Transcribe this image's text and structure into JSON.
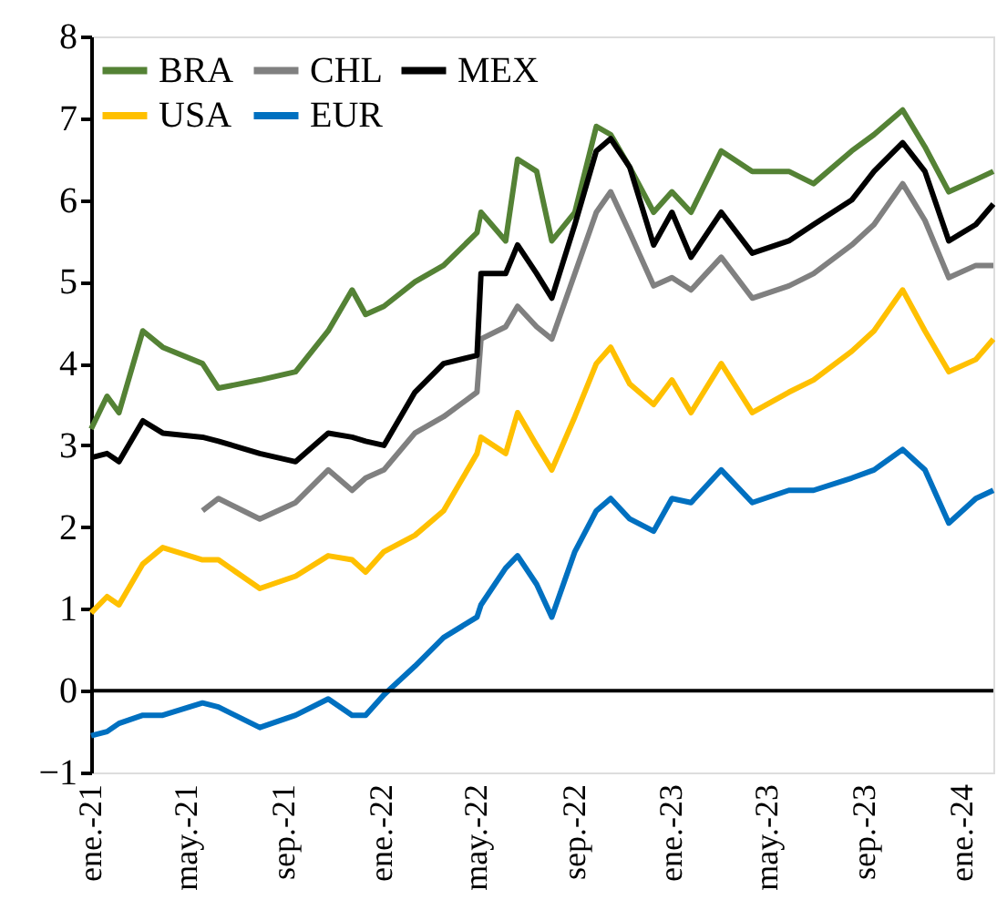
{
  "chart_data": {
    "type": "line",
    "x": [
      "2021-01-01",
      "2021-01-21",
      "2021-02-05",
      "2021-03-07",
      "2021-04-01",
      "2021-05-21",
      "2021-06-10",
      "2021-08-01",
      "2021-09-15",
      "2021-10-26",
      "2021-11-25",
      "2021-12-12",
      "2022-01-04",
      "2022-02-12",
      "2022-03-20",
      "2022-05-01",
      "2022-05-06",
      "2022-06-06",
      "2022-06-21",
      "2022-07-15",
      "2022-08-03",
      "2022-09-01",
      "2022-09-28",
      "2022-10-16",
      "2022-11-09",
      "2022-12-09",
      "2023-01-01",
      "2023-01-25",
      "2023-03-04",
      "2023-04-12",
      "2023-05-28",
      "2023-06-28",
      "2023-08-15",
      "2023-09-12",
      "2023-10-18",
      "2023-11-15",
      "2023-12-15",
      "2024-01-18",
      "2024-02-09"
    ],
    "series": [
      {
        "name": "BRA",
        "color": "#548235",
        "values": [
          3.2,
          3.6,
          3.4,
          4.4,
          4.2,
          4.0,
          3.7,
          3.8,
          3.9,
          4.4,
          4.9,
          4.6,
          4.7,
          5.0,
          5.2,
          5.6,
          5.85,
          5.5,
          6.5,
          6.35,
          5.5,
          5.85,
          6.9,
          6.8,
          6.4,
          5.85,
          6.1,
          5.85,
          6.6,
          6.35,
          6.35,
          6.2,
          6.6,
          6.8,
          7.1,
          6.65,
          6.1,
          6.25,
          6.35
        ]
      },
      {
        "name": "CHL",
        "color": "#808080",
        "values": [
          null,
          null,
          null,
          null,
          null,
          2.2,
          2.35,
          2.1,
          2.3,
          2.7,
          2.45,
          2.6,
          2.7,
          3.15,
          3.35,
          3.65,
          4.3,
          4.45,
          4.7,
          4.45,
          4.3,
          5.1,
          5.85,
          6.1,
          5.6,
          4.95,
          5.05,
          4.9,
          5.3,
          4.8,
          4.95,
          5.1,
          5.45,
          5.7,
          6.2,
          5.75,
          5.05,
          5.2,
          5.2
        ]
      },
      {
        "name": "MEX",
        "color": "#000000",
        "values": [
          2.85,
          2.9,
          2.8,
          3.3,
          3.15,
          3.1,
          3.05,
          2.9,
          2.8,
          3.15,
          3.1,
          3.05,
          3.0,
          3.65,
          4.0,
          4.1,
          5.1,
          5.1,
          5.45,
          5.1,
          4.8,
          5.7,
          6.6,
          6.75,
          6.4,
          5.45,
          5.85,
          5.3,
          5.85,
          5.35,
          5.5,
          5.7,
          6.0,
          6.35,
          6.7,
          6.35,
          5.5,
          5.7,
          5.95
        ]
      },
      {
        "name": "USA",
        "color": "#ffc000",
        "values": [
          0.95,
          1.15,
          1.05,
          1.55,
          1.75,
          1.6,
          1.6,
          1.25,
          1.4,
          1.65,
          1.6,
          1.45,
          1.7,
          1.9,
          2.2,
          2.9,
          3.1,
          2.9,
          3.4,
          3.0,
          2.7,
          3.35,
          4.0,
          4.2,
          3.75,
          3.5,
          3.8,
          3.4,
          4.0,
          3.4,
          3.65,
          3.8,
          4.15,
          4.4,
          4.9,
          4.4,
          3.9,
          4.05,
          4.3
        ]
      },
      {
        "name": "EUR",
        "color": "#0070c0",
        "values": [
          -0.55,
          -0.5,
          -0.4,
          -0.3,
          -0.3,
          -0.15,
          -0.2,
          -0.45,
          -0.3,
          -0.1,
          -0.3,
          -0.3,
          -0.05,
          0.3,
          0.65,
          0.9,
          1.05,
          1.5,
          1.65,
          1.3,
          0.9,
          1.7,
          2.2,
          2.35,
          2.1,
          1.95,
          2.35,
          2.3,
          2.7,
          2.3,
          2.45,
          2.45,
          2.6,
          2.7,
          2.95,
          2.7,
          2.05,
          2.35,
          2.45
        ]
      }
    ],
    "xlim": [
      "2021-01-01",
      "2024-02-09"
    ],
    "xticks": [
      {
        "value": "2021-01-01",
        "label": "ene.-21"
      },
      {
        "value": "2021-05-01",
        "label": "may.-21"
      },
      {
        "value": "2021-09-01",
        "label": "sep.-21"
      },
      {
        "value": "2022-01-01",
        "label": "ene.-22"
      },
      {
        "value": "2022-05-01",
        "label": "may.-22"
      },
      {
        "value": "2022-09-01",
        "label": "sep.-22"
      },
      {
        "value": "2023-01-01",
        "label": "ene.-23"
      },
      {
        "value": "2023-05-01",
        "label": "may.-23"
      },
      {
        "value": "2023-09-01",
        "label": "sep.-23"
      },
      {
        "value": "2024-01-01",
        "label": "ene.-24"
      }
    ],
    "ylim": [
      -1,
      8
    ],
    "yticks": [
      -1,
      0,
      1,
      2,
      3,
      4,
      5,
      6,
      7,
      8
    ],
    "ref_lines": [
      {
        "axis": "y",
        "value": 0,
        "color": "#000000"
      }
    ],
    "grid": false,
    "legend": "top left",
    "marker": "none",
    "line_style": "solid"
  }
}
